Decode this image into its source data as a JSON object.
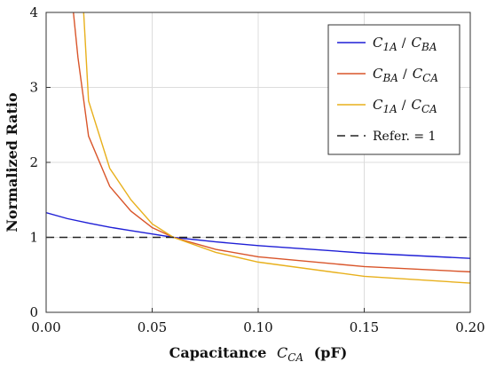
{
  "chart_data": {
    "type": "line",
    "xlabel_prefix": "Capacitance",
    "xlabel_var": "C",
    "xlabel_sub": "CA",
    "xlabel_unit": "(pF)",
    "ylabel": "Normalized Ratio",
    "xlim": [
      0,
      0.2
    ],
    "ylim": [
      0,
      4
    ],
    "xticks": [
      "0.00",
      "0.05",
      "0.10",
      "0.15",
      "0.20"
    ],
    "xtick_values": [
      0,
      0.05,
      0.1,
      0.15,
      0.2
    ],
    "yticks": [
      "0",
      "1",
      "2",
      "3",
      "4"
    ],
    "ytick_values": [
      0,
      1,
      2,
      3,
      4
    ],
    "grid": true,
    "legend_position": "top-right",
    "series": [
      {
        "name_num": "C",
        "name_num_sub": "1A",
        "name_den": "C",
        "name_den_sub": "BA",
        "color": "#1f1fd6",
        "dash": false,
        "points": [
          [
            0.0,
            1.33
          ],
          [
            0.01,
            1.25
          ],
          [
            0.02,
            1.19
          ],
          [
            0.03,
            1.135
          ],
          [
            0.04,
            1.09
          ],
          [
            0.05,
            1.045
          ],
          [
            0.06,
            1.0
          ],
          [
            0.08,
            0.94
          ],
          [
            0.1,
            0.89
          ],
          [
            0.15,
            0.79
          ],
          [
            0.2,
            0.72
          ]
        ]
      },
      {
        "name_num": "C",
        "name_num_sub": "BA",
        "name_den": "C",
        "name_den_sub": "CA",
        "color": "#d9552a",
        "dash": false,
        "points": [
          [
            0.0125,
            4.1
          ],
          [
            0.015,
            3.4
          ],
          [
            0.02,
            2.35
          ],
          [
            0.03,
            1.68
          ],
          [
            0.04,
            1.35
          ],
          [
            0.05,
            1.13
          ],
          [
            0.06,
            1.0
          ],
          [
            0.08,
            0.84
          ],
          [
            0.1,
            0.74
          ],
          [
            0.15,
            0.61
          ],
          [
            0.2,
            0.54
          ]
        ]
      },
      {
        "name_num": "C",
        "name_num_sub": "1A",
        "name_den": "C",
        "name_den_sub": "CA",
        "color": "#e8b01c",
        "dash": false,
        "points": [
          [
            0.0175,
            4.1
          ],
          [
            0.02,
            2.82
          ],
          [
            0.03,
            1.92
          ],
          [
            0.04,
            1.5
          ],
          [
            0.05,
            1.18
          ],
          [
            0.06,
            1.0
          ],
          [
            0.08,
            0.8
          ],
          [
            0.1,
            0.67
          ],
          [
            0.15,
            0.48
          ],
          [
            0.2,
            0.39
          ]
        ]
      },
      {
        "name": "Refer. = 1",
        "color": "#222222",
        "dash": true,
        "points": [
          [
            0.0,
            1.0
          ],
          [
            0.2,
            1.0
          ]
        ]
      }
    ]
  }
}
